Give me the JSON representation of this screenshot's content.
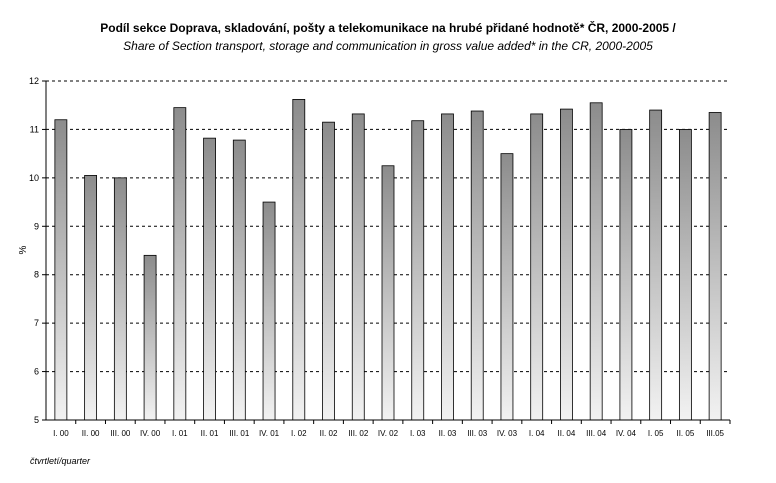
{
  "chart_data": {
    "type": "bar",
    "title": "Podíl sekce Doprava, skladování, pošty a telekomunikace na hrubé přidané hodnotě* ČR, 2000-2005 /",
    "subtitle": "Share of Section transport, storage and communication in gross value added* in the CR, 2000-2005",
    "xlabel": "čtvrtletí/quarter",
    "ylabel": "%",
    "ylim": [
      5,
      12
    ],
    "yticks": [
      "5",
      "6",
      "7",
      "8",
      "9",
      "10",
      "11",
      "12"
    ],
    "grid": true,
    "legend": "none",
    "categories": [
      "I. 00",
      "II. 00",
      "III. 00",
      "IV. 00",
      "I. 01",
      "II. 01",
      "III. 01",
      "IV. 01",
      "I. 02",
      "II. 02",
      "III. 02",
      "IV. 02",
      "I. 03",
      "II. 03",
      "III. 03",
      "IV. 03",
      "I. 04",
      "II. 04",
      "III. 04",
      "IV. 04",
      "I. 05",
      "II. 05",
      "III.05"
    ],
    "values": [
      11.2,
      10.05,
      10.0,
      8.4,
      11.45,
      10.82,
      10.78,
      9.5,
      11.62,
      11.15,
      11.32,
      10.25,
      11.18,
      11.32,
      11.38,
      10.5,
      11.32,
      11.42,
      11.55,
      11.0,
      11.4,
      11.0,
      11.35
    ]
  }
}
